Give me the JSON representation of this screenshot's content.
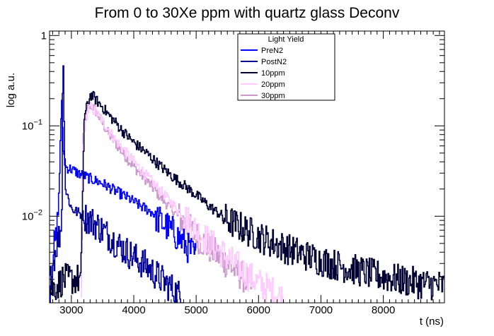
{
  "chart_data": {
    "type": "line",
    "title": "From 0 to 30Xe ppm with quartz glass Deconv",
    "xlabel": "t (ns)",
    "ylabel": "log a.u.",
    "xlim": [
      2650,
      8980
    ],
    "ylim": [
      0.0011,
      1.12
    ],
    "y_scale": "log",
    "x_ticks": [
      3000,
      4000,
      5000,
      6000,
      7000,
      8000
    ],
    "y_ticks": [
      {
        "value": 1,
        "label": "1"
      },
      {
        "value": 0.1,
        "label": "10⁻¹",
        "base": "10",
        "exp": "−1"
      },
      {
        "value": 0.01,
        "label": "10⁻²",
        "base": "10",
        "exp": "−2"
      }
    ],
    "grid": false,
    "legend": {
      "title": "Light Yield",
      "placement": "top-center",
      "entries": [
        "PreN2",
        "PostN2",
        "10ppm",
        "20ppm",
        "30ppm"
      ]
    },
    "series": [
      {
        "name": "PreN2",
        "color": "#0000ff",
        "x": [
          2650,
          2700,
          2760,
          2800,
          2820,
          2840,
          2860,
          2900,
          3000,
          3100,
          3200,
          3300,
          3500,
          3700,
          3900,
          4100,
          4200,
          4300,
          4400,
          4600,
          4800,
          5000
        ],
        "y": [
          0.0015,
          0.004,
          0.006,
          0.02,
          0.08,
          0.2,
          0.06,
          0.035,
          0.033,
          0.03,
          0.028,
          0.026,
          0.023,
          0.019,
          0.016,
          0.013,
          0.012,
          0.011,
          0.009,
          0.007,
          0.005,
          0.0035
        ]
      },
      {
        "name": "PostN2",
        "color": "#000099",
        "x": [
          2650,
          2700,
          2760,
          2800,
          2840,
          2860,
          2870,
          2900,
          3000,
          3100,
          3200,
          3400,
          3600,
          3800,
          4000,
          4200,
          4400,
          4600,
          4800
        ],
        "y": [
          0.0018,
          0.003,
          0.005,
          0.006,
          0.008,
          1.0,
          0.25,
          0.02,
          0.012,
          0.011,
          0.01,
          0.008,
          0.006,
          0.0045,
          0.0035,
          0.0028,
          0.0021,
          0.0016,
          0.0012
        ]
      },
      {
        "name": "10ppm",
        "color": "#000033",
        "x": [
          2650,
          2800,
          2860,
          3000,
          3150,
          3200,
          3250,
          3300,
          3350,
          3400,
          3500,
          3600,
          3700,
          3800,
          4000,
          4200,
          4400,
          4600,
          4800,
          5000,
          5200,
          5500,
          5800,
          6100,
          6400,
          6700,
          7000,
          7400,
          7800,
          8200,
          8600,
          8980
        ],
        "y": [
          0.0015,
          0.0018,
          0.002,
          0.002,
          0.002,
          0.12,
          0.17,
          0.22,
          0.21,
          0.19,
          0.16,
          0.13,
          0.11,
          0.09,
          0.065,
          0.05,
          0.037,
          0.028,
          0.022,
          0.017,
          0.013,
          0.009,
          0.007,
          0.0055,
          0.0045,
          0.0038,
          0.0032,
          0.0027,
          0.0023,
          0.002,
          0.0018,
          0.0017
        ]
      },
      {
        "name": "20ppm",
        "color": "#ffccff",
        "x": [
          3150,
          3180,
          3200,
          3250,
          3300,
          3350,
          3400,
          3500,
          3600,
          3700,
          3800,
          4000,
          4200,
          4400,
          4600,
          4800,
          5000,
          5200,
          5400,
          5600,
          5800,
          6000,
          6200,
          6400
        ],
        "y": [
          0.0015,
          0.05,
          0.09,
          0.14,
          0.16,
          0.15,
          0.14,
          0.11,
          0.09,
          0.07,
          0.058,
          0.04,
          0.028,
          0.02,
          0.014,
          0.01,
          0.007,
          0.0052,
          0.004,
          0.003,
          0.0023,
          0.0018,
          0.0015,
          0.0012
        ]
      },
      {
        "name": "30ppm",
        "color": "#cc99cc",
        "x": [
          3150,
          3180,
          3200,
          3250,
          3300,
          3350,
          3400,
          3500,
          3600,
          3700,
          3800,
          4000,
          4200,
          4400,
          4600,
          4800,
          5000,
          5200,
          5400,
          5600,
          5800,
          5900
        ],
        "y": [
          0.0015,
          0.06,
          0.11,
          0.15,
          0.17,
          0.16,
          0.14,
          0.105,
          0.08,
          0.065,
          0.052,
          0.035,
          0.025,
          0.017,
          0.012,
          0.0085,
          0.006,
          0.0045,
          0.0034,
          0.0026,
          0.002,
          0.0015
        ]
      }
    ]
  }
}
